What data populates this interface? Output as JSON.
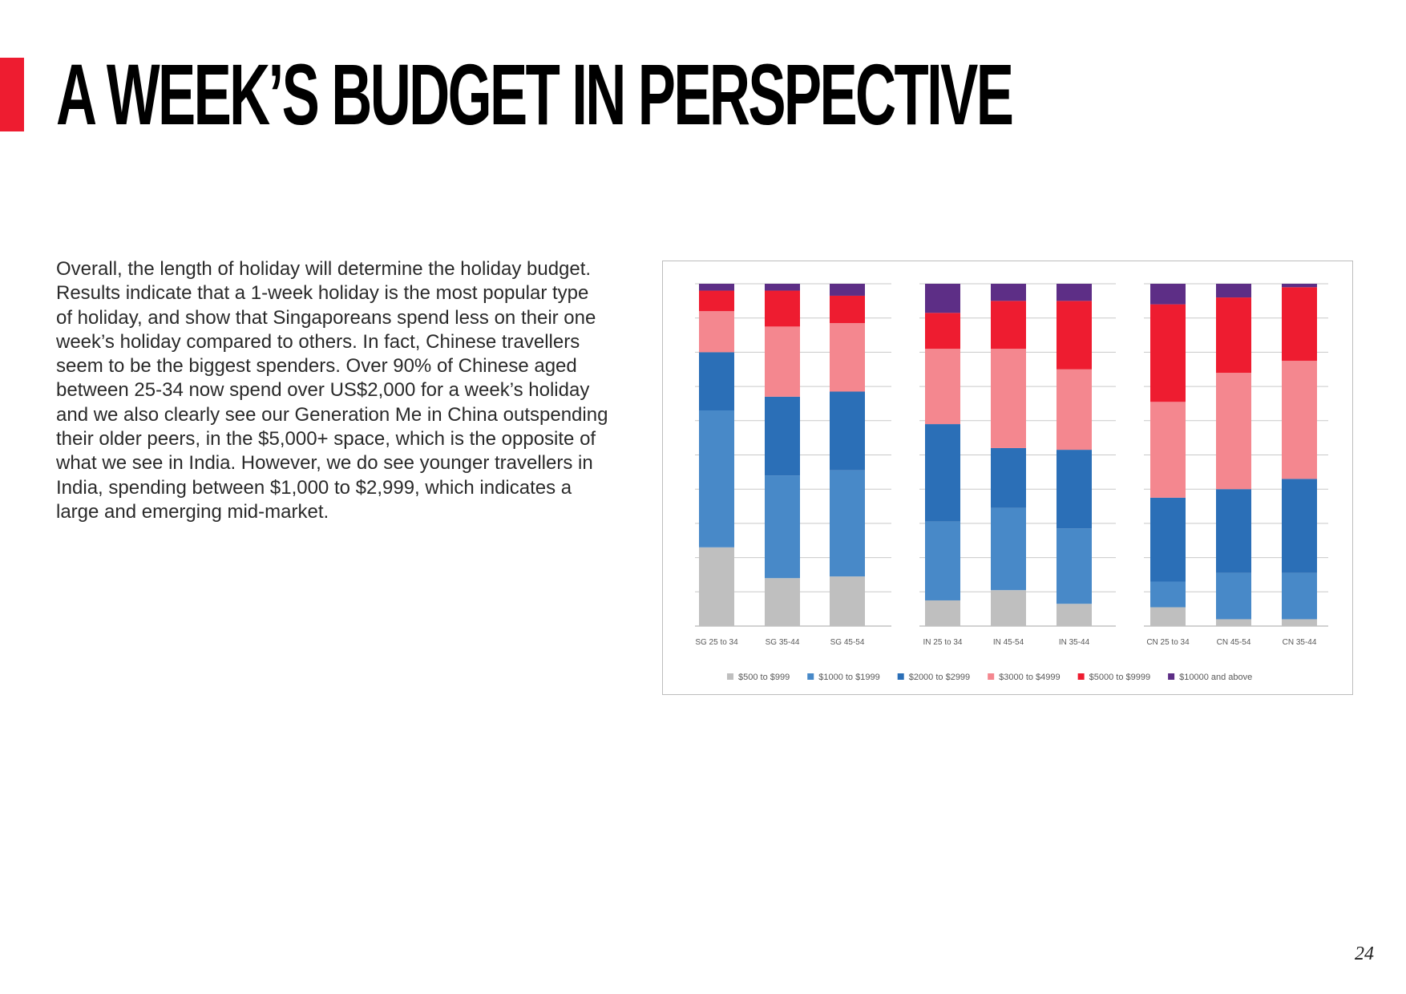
{
  "page": {
    "title": "A WEEK’S BUDGET IN PERSPECTIVE",
    "body": "Overall, the length of holiday will determine the holiday budget. Results indicate that a 1-week holiday is the most popular type of holiday, and show that Singaporeans spend less on their one week’s holiday compared to others. In fact, Chinese travellers seem to be the biggest spenders. Over 90% of Chinese aged between 25-34 now spend over US$2,000 for a week’s holiday and we also clearly see our Generation Me in China outspending their older peers, in the $5,000+ space, which is the opposite of what we see in India. However, we do see younger travellers in India, spending between $1,000 to $2,999, which indicates a large and emerging mid-market.",
    "page_number": "24",
    "accent_color": "#ee1c30"
  },
  "chart_data": {
    "type": "bar",
    "stacked": true,
    "percent": true,
    "ylim": [
      0,
      100
    ],
    "grid": true,
    "legend_position": "bottom",
    "groups": [
      {
        "name": "SG",
        "categories": [
          "SG 25 to 34",
          "SG 35-44",
          "SG 45-54"
        ]
      },
      {
        "name": "IN",
        "categories": [
          "IN 25 to 34",
          "IN 45-54",
          "IN 35-44"
        ]
      },
      {
        "name": "CN",
        "categories": [
          "CN 25 to 34",
          "CN 45-54",
          "CN 35-44"
        ]
      }
    ],
    "categories": [
      "SG 25 to 34",
      "SG 35-44",
      "SG 45-54",
      "IN 25 to 34",
      "IN 45-54",
      "IN 35-44",
      "CN 25 to 34",
      "CN 45-54",
      "CN 35-44"
    ],
    "series": [
      {
        "name": "$500 to $999",
        "color": "#bfbfbf",
        "values": [
          23,
          14,
          14.5,
          7.5,
          10.5,
          6.5,
          5.5,
          2,
          2
        ]
      },
      {
        "name": "$1000 to $1999",
        "color": "#4889c8",
        "values": [
          40,
          30,
          31,
          23,
          24,
          22,
          7.5,
          13.5,
          13.5
        ]
      },
      {
        "name": "$2000 to $2999",
        "color": "#2b6fb7",
        "values": [
          17,
          23,
          23,
          28.5,
          17.5,
          23,
          24.5,
          24.5,
          27.5
        ]
      },
      {
        "name": "$3000 to $4999",
        "color": "#f4878f",
        "values": [
          12,
          20.5,
          20,
          22,
          29,
          23.5,
          28,
          34,
          34.5
        ]
      },
      {
        "name": "$5000 to $9999",
        "color": "#ee1c30",
        "values": [
          6,
          10.5,
          8,
          10.5,
          14,
          20,
          28.5,
          22,
          21.5
        ]
      },
      {
        "name": "$10000 and above",
        "color": "#5d2e86",
        "values": [
          2,
          2,
          3.5,
          8.5,
          5,
          5,
          6,
          4,
          1
        ]
      }
    ]
  }
}
